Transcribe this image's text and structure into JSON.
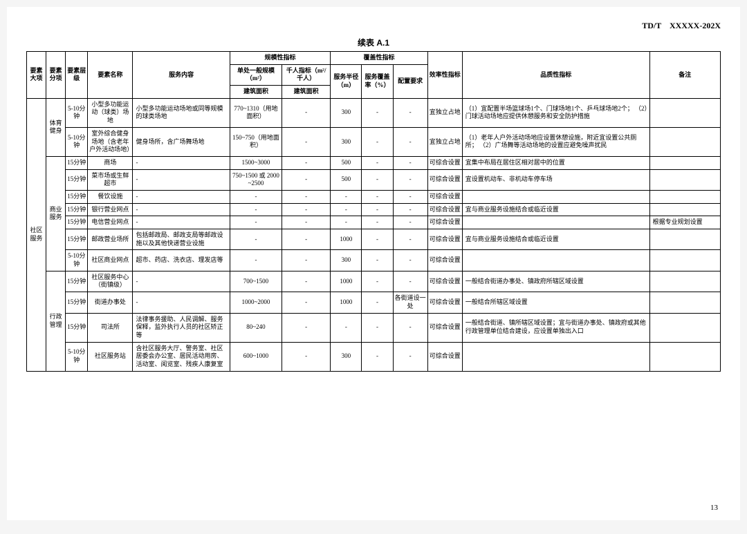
{
  "doc_id": "TD/T　XXXXX-202X",
  "table_title": "续表 A.1",
  "page_number": "13",
  "header": {
    "h1": "要素大项",
    "h2": "要素分项",
    "h3": "要素层级",
    "h4": "要素名称",
    "h5": "服务内容",
    "h6g": "规模性指标",
    "h6a": "单处一般规模（m²）",
    "h6b": "千人指标（m²/千人）",
    "h6c": "建筑面积",
    "h6d": "建筑面积",
    "h7g": "覆盖性指标",
    "h7a": "服务半径（m）",
    "h7b": "服务覆盖率（%）",
    "h7c": "配置要求",
    "h8": "效率性指标",
    "h9": "品质性指标",
    "h10": "备注"
  },
  "cat_major": "社区服务",
  "groups": [
    {
      "sub": "体育健身",
      "rows": [
        {
          "lvl": "5-10分钟",
          "name": "小型多功能运动（球类）场地",
          "svc": "小型多功能运动场地或同等规模的球类场地",
          "scale": "770~1310（用地面积）",
          "kpi": "-",
          "rad": "300",
          "cov": "-",
          "req": "-",
          "eff": "宜独立占地",
          "qual": "（1）宜配置半场篮球场1个、门球场地1个、乒乓球场地2个；\n（2）门球活动场地应提供休憩服务和安全防护措施",
          "note": ""
        },
        {
          "lvl": "5-10分钟",
          "name": "室外综合健身场地（含老年户外活动场地）",
          "svc": "健身场所，含广场舞场地",
          "scale": "150~750（用地面积）",
          "kpi": "-",
          "rad": "300",
          "cov": "-",
          "req": "-",
          "eff": "宜独立占地",
          "qual": "（1）老年人户外活动场地应设置休憩设施，附近宜设置公共厕所；\n（2）广场舞等活动场地的设置应避免噪声扰民",
          "note": ""
        }
      ]
    },
    {
      "sub": "商业服务",
      "rows": [
        {
          "lvl": "15分钟",
          "name": "商场",
          "svc": "-",
          "scale": "1500~3000",
          "kpi": "-",
          "rad": "500",
          "cov": "-",
          "req": "-",
          "eff": "可综合设置",
          "qual": "宜集中布局在居住区相对居中的位置",
          "note": ""
        },
        {
          "lvl": "15分钟",
          "name": "菜市场或生鲜超市",
          "svc": "-",
          "scale": "750~1500 或 2000~2500",
          "kpi": "-",
          "rad": "500",
          "cov": "-",
          "req": "-",
          "eff": "可综合设置",
          "qual": "宜设置机动车、非机动车停车场",
          "note": ""
        },
        {
          "lvl": "15分钟",
          "name": "餐饮设施",
          "svc": "-",
          "scale": "-",
          "kpi": "-",
          "rad": "-",
          "cov": "-",
          "req": "-",
          "eff": "可综合设置",
          "qual": "",
          "note": ""
        },
        {
          "lvl": "15分钟",
          "name": "银行营业网点",
          "svc": "-",
          "scale": "-",
          "kpi": "-",
          "rad": "-",
          "cov": "-",
          "req": "-",
          "eff": "可综合设置",
          "qual": "宜与商业服务设施结合或临近设置",
          "note": ""
        },
        {
          "lvl": "15分钟",
          "name": "电信营业网点",
          "svc": "-",
          "scale": "-",
          "kpi": "-",
          "rad": "-",
          "cov": "-",
          "req": "-",
          "eff": "可综合设置",
          "qual": "",
          "note": "根据专业规划设置"
        },
        {
          "lvl": "15分钟",
          "name": "邮政营业场所",
          "svc": "包括邮政局、邮政支局等邮政设施以及其他快递营业设施",
          "scale": "-",
          "kpi": "-",
          "rad": "1000",
          "cov": "-",
          "req": "-",
          "eff": "可综合设置",
          "qual": "宜与商业服务设施结合或临近设置",
          "note": ""
        },
        {
          "lvl": "5-10分钟",
          "name": "社区商业网点",
          "svc": "超市、药店、洗衣店、理发店等",
          "scale": "-",
          "kpi": "-",
          "rad": "300",
          "cov": "-",
          "req": "-",
          "eff": "可综合设置",
          "qual": "",
          "note": ""
        }
      ]
    },
    {
      "sub": "行政管理",
      "rows": [
        {
          "lvl": "15分钟",
          "name": "社区服务中心（街镇级）",
          "svc": "-",
          "scale": "700~1500",
          "kpi": "-",
          "rad": "1000",
          "cov": "-",
          "req": "-",
          "eff": "可综合设置",
          "qual": "一般结合街道办事处、镇政府所辖区域设置",
          "note": ""
        },
        {
          "lvl": "15分钟",
          "name": "街道办事处",
          "svc": "-",
          "scale": "1000~2000",
          "kpi": "-",
          "rad": "1000",
          "cov": "-",
          "req": "各街道设一处",
          "eff": "可综合设置",
          "qual": "一般结合所辖区域设置",
          "note": ""
        },
        {
          "lvl": "15分钟",
          "name": "司法所",
          "svc": "法律事务援助、人民调解、服务保释，监外执行人员的社区矫正等",
          "scale": "80~240",
          "kpi": "-",
          "rad": "-",
          "cov": "-",
          "req": "-",
          "eff": "可综合设置",
          "qual": "一般结合街道、镇所辖区域设置；宜与街道办事处、镇政府或其他行政管理单位结合建设，应设置单独出入口",
          "note": ""
        },
        {
          "lvl": "5-10分钟",
          "name": "社区服务站",
          "svc": "含社区服务大厅、警务室、社区居委会办公室、居民活动用房、活动室、阅览室、残疾人康复室",
          "scale": "600~1000",
          "kpi": "-",
          "rad": "300",
          "cov": "-",
          "req": "-",
          "eff": "可综合设置",
          "qual": "",
          "note": ""
        }
      ]
    }
  ]
}
